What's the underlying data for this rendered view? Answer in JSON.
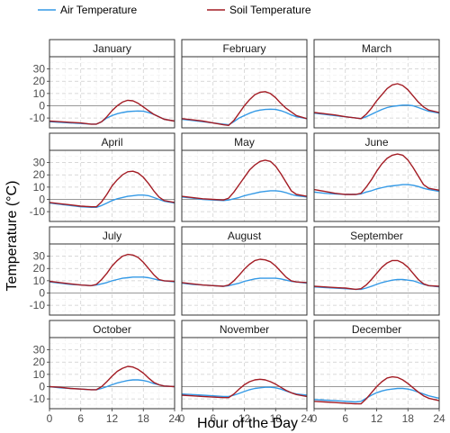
{
  "chart_data": {
    "type": "line",
    "xlabel": "Hour of the Day",
    "ylabel": "Temperature (°C)",
    "xlim": [
      0,
      24
    ],
    "ylim": [
      -18,
      40
    ],
    "x_ticks": [
      "0",
      "6",
      "12",
      "18",
      "24"
    ],
    "y_ticks": [
      "-10",
      "0",
      "10",
      "20",
      "30"
    ],
    "x_tick_values": [
      0,
      6,
      12,
      18,
      24
    ],
    "y_tick_values": [
      -10,
      0,
      10,
      20,
      30
    ],
    "grid": true,
    "legend_position": "top",
    "series_names": [
      "Air Temperature",
      "Soil Temperature"
    ],
    "series_colors": [
      "#3399e6",
      "#a31c24"
    ],
    "x": [
      0,
      2,
      4,
      6,
      8,
      9,
      10,
      11,
      12,
      13,
      14,
      15,
      16,
      17,
      18,
      19,
      20,
      21,
      22,
      24
    ],
    "panels": [
      {
        "title": "January",
        "series": [
          {
            "name": "Air Temperature",
            "values": [
              -13,
              -13.5,
              -14,
              -14.5,
              -15,
              -15,
              -13,
              -10,
              -8,
              -6.5,
              -5.5,
              -4.8,
              -4.5,
              -4.3,
              -4.5,
              -5.5,
              -7,
              -9,
              -11,
              -12.5
            ]
          },
          {
            "name": "Soil Temperature",
            "values": [
              -12.5,
              -13,
              -13.5,
              -14,
              -15,
              -15,
              -13,
              -9,
              -4,
              0,
              3,
              4.5,
              4,
              2,
              -1,
              -4,
              -7,
              -9,
              -11,
              -12.5
            ]
          }
        ]
      },
      {
        "title": "February",
        "series": [
          {
            "name": "Air Temperature",
            "values": [
              -11,
              -12,
              -13,
              -14,
              -15,
              -15.5,
              -13,
              -10,
              -8,
              -6,
              -4.5,
              -3.5,
              -3,
              -2.8,
              -3,
              -4,
              -5.5,
              -7.5,
              -9,
              -10.5
            ]
          },
          {
            "name": "Soil Temperature",
            "values": [
              -10.5,
              -11.5,
              -12.5,
              -14,
              -15.5,
              -16,
              -12,
              -6,
              0,
              5,
              9,
              11,
              11.5,
              10,
              6.5,
              2,
              -2,
              -5,
              -8,
              -10.5
            ]
          }
        ]
      },
      {
        "title": "March",
        "series": [
          {
            "name": "Air Temperature",
            "values": [
              -6,
              -7,
              -8,
              -9,
              -10,
              -10.5,
              -9,
              -7,
              -5,
              -3,
              -1.5,
              -0.5,
              0,
              0.5,
              0.5,
              0,
              -1.5,
              -3,
              -4.5,
              -6
            ]
          },
          {
            "name": "Soil Temperature",
            "values": [
              -5.5,
              -6.5,
              -7.5,
              -9,
              -10,
              -10.5,
              -7,
              -2,
              4,
              9,
              14,
              17,
              18,
              16.5,
              13,
              8,
              3,
              -1,
              -3.5,
              -5.5
            ]
          }
        ]
      },
      {
        "title": "April",
        "series": [
          {
            "name": "Air Temperature",
            "values": [
              -3,
              -4,
              -5,
              -6,
              -6.5,
              -6.5,
              -5,
              -3,
              -1,
              0.5,
              1.5,
              2.5,
              3,
              3.5,
              3.5,
              3,
              1.5,
              0,
              -1.5,
              -3
            ]
          },
          {
            "name": "Soil Temperature",
            "values": [
              -2.5,
              -3.5,
              -4.5,
              -5.5,
              -6,
              -6,
              -2,
              4,
              11,
              16,
              20,
              22.5,
              23,
              21.5,
              18,
              13,
              7,
              2,
              -1,
              -2.5
            ]
          }
        ]
      },
      {
        "title": "May",
        "series": [
          {
            "name": "Air Temperature",
            "values": [
              2,
              1,
              0,
              -0.5,
              -1,
              -0.5,
              0.5,
              1.5,
              3,
              4,
              5,
              6,
              6.5,
              7,
              7,
              6.5,
              5.5,
              4,
              3,
              2
            ]
          },
          {
            "name": "Soil Temperature",
            "values": [
              2.5,
              1.5,
              0.5,
              0,
              -0.5,
              1,
              6,
              12,
              18,
              24,
              28,
              31,
              32,
              31,
              27,
              21,
              14,
              7,
              4,
              2.5
            ]
          }
        ]
      },
      {
        "title": "June",
        "series": [
          {
            "name": "Air Temperature",
            "values": [
              6,
              5,
              4.5,
              4,
              4,
              4.5,
              6,
              7,
              8.5,
              9.5,
              10.5,
              11,
              11.5,
              12,
              12,
              11.5,
              10.5,
              9,
              8,
              6.5
            ]
          },
          {
            "name": "Soil Temperature",
            "values": [
              8,
              6.5,
              5,
              4,
              4,
              5,
              10,
              16,
              23,
              29,
              33.5,
              36,
              37,
              36,
              32,
              26,
              19,
              12,
              9,
              7.5
            ]
          }
        ]
      },
      {
        "title": "July",
        "series": [
          {
            "name": "Air Temperature",
            "values": [
              9,
              8,
              7,
              6.5,
              6,
              6.5,
              7.5,
              8.5,
              10,
              11,
              12,
              12.5,
              13,
              13,
              13,
              12.5,
              11.5,
              10.5,
              10,
              9
            ]
          },
          {
            "name": "Soil Temperature",
            "values": [
              9.5,
              8.5,
              7.5,
              6.5,
              6,
              7,
              11,
              16,
              22,
              26.5,
              30,
              31.5,
              31,
              29,
              25,
              20,
              15,
              11,
              10,
              9.5
            ]
          }
        ]
      },
      {
        "title": "August",
        "series": [
          {
            "name": "Air Temperature",
            "values": [
              8,
              7,
              6.5,
              6,
              5.5,
              6,
              7,
              8,
              9.5,
              10.5,
              11.5,
              12,
              12,
              12,
              12,
              11.5,
              10.5,
              9.5,
              9,
              8
            ]
          },
          {
            "name": "Soil Temperature",
            "values": [
              8.5,
              7.5,
              6.5,
              6,
              5.5,
              6.5,
              10,
              14.5,
              19.5,
              23.5,
              26.5,
              27.5,
              27,
              25.5,
              22,
              17.5,
              13,
              10,
              9,
              8.5
            ]
          }
        ]
      },
      {
        "title": "September",
        "series": [
          {
            "name": "Air Temperature",
            "values": [
              5,
              4.5,
              4,
              3.5,
              3,
              3,
              4,
              5.5,
              7,
              8.5,
              9.5,
              10.5,
              11,
              11,
              10.5,
              10,
              8.5,
              7,
              6,
              5
            ]
          },
          {
            "name": "Soil Temperature",
            "values": [
              5.5,
              5,
              4.5,
              4,
              3,
              3.5,
              6.5,
              11,
              16,
              21,
              24.5,
              26.5,
              26.5,
              24.5,
              21,
              16,
              11,
              7.5,
              6,
              5.5
            ]
          }
        ]
      },
      {
        "title": "October",
        "series": [
          {
            "name": "Air Temperature",
            "values": [
              0,
              -1,
              -1.5,
              -2,
              -2.5,
              -2.5,
              -1.5,
              0,
              1.5,
              3,
              4,
              5,
              5.5,
              5.5,
              5,
              4,
              2.5,
              1.5,
              0.5,
              0
            ]
          },
          {
            "name": "Soil Temperature",
            "values": [
              0,
              -0.5,
              -1.5,
              -2,
              -2.5,
              -2.5,
              0,
              4,
              8.5,
              12.5,
              15,
              16.5,
              16,
              14,
              11,
              7,
              3.5,
              1.5,
              0.5,
              0
            ]
          }
        ]
      },
      {
        "title": "November",
        "series": [
          {
            "name": "Air Temperature",
            "values": [
              -6,
              -6.5,
              -7,
              -7.5,
              -8,
              -8,
              -7,
              -5.5,
              -4,
              -2.5,
              -1.5,
              -1,
              -0.5,
              -0.5,
              -1,
              -2,
              -3.5,
              -5,
              -6,
              -7
            ]
          },
          {
            "name": "Soil Temperature",
            "values": [
              -7,
              -7.5,
              -8,
              -8.5,
              -9,
              -9,
              -6,
              -2,
              1.5,
              4,
              5.5,
              6,
              5.5,
              4,
              2,
              -0.5,
              -3,
              -5,
              -6.5,
              -8
            ]
          }
        ]
      },
      {
        "title": "December",
        "series": [
          {
            "name": "Air Temperature",
            "values": [
              -10.5,
              -11,
              -11.5,
              -12,
              -12.5,
              -12,
              -9.5,
              -7,
              -5,
              -3.5,
              -2.5,
              -2,
              -1.5,
              -1.5,
              -2,
              -3,
              -4.5,
              -6,
              -7.5,
              -9.5
            ]
          },
          {
            "name": "Soil Temperature",
            "values": [
              -12,
              -12.5,
              -13,
              -13.5,
              -14,
              -14,
              -10,
              -5,
              0,
              4,
              7,
              8,
              7.5,
              5.5,
              2.5,
              -1,
              -4.5,
              -7.5,
              -9.5,
              -11.5
            ]
          }
        ]
      }
    ]
  }
}
